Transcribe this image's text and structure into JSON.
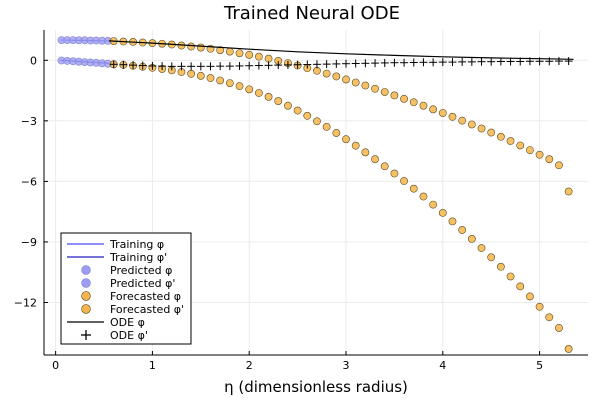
{
  "chart_data": {
    "type": "scatter",
    "title": "Trained Neural ODE",
    "xlabel": "η (dimensionless radius)",
    "ylabel": "",
    "xlim": [
      -0.12,
      5.5
    ],
    "ylim": [
      -14.6,
      1.5
    ],
    "xticks": [
      0,
      1,
      2,
      3,
      4,
      5
    ],
    "xtick_labels": [
      "0",
      "1",
      "2",
      "3",
      "4",
      "5"
    ],
    "yticks": [
      0,
      -3,
      -6,
      -9,
      -12
    ],
    "ytick_labels": [
      "0",
      "−3",
      "−6",
      "−9",
      "−12"
    ],
    "grid": true,
    "legend_position": "bottom-left",
    "colors": {
      "training_line": "#3b3bff",
      "predicted_marker": "#9c9cf2",
      "forecast_marker": "#f5b54a",
      "ode_line": "#000000"
    },
    "series": [
      {
        "name": "Training φ",
        "kind": "line",
        "color": "#4a4aff",
        "x": [
          0.05,
          0.55
        ],
        "y": [
          1.0,
          0.96
        ]
      },
      {
        "name": "Training φ'",
        "kind": "line",
        "color": "#2020c0",
        "x": [
          0.05,
          0.55
        ],
        "y": [
          0.0,
          -0.15
        ]
      },
      {
        "name": "Predicted φ",
        "kind": "marker",
        "color": "#9c9cf2",
        "x": [
          0.06,
          0.12,
          0.18,
          0.24,
          0.3,
          0.36,
          0.42,
          0.48,
          0.54
        ],
        "y": [
          1.0,
          1.0,
          1.0,
          0.99,
          0.99,
          0.98,
          0.98,
          0.97,
          0.96
        ]
      },
      {
        "name": "Predicted φ'",
        "kind": "marker",
        "color": "#9c9cf2",
        "x": [
          0.06,
          0.12,
          0.18,
          0.24,
          0.3,
          0.36,
          0.42,
          0.48,
          0.54
        ],
        "y": [
          -0.01,
          -0.03,
          -0.05,
          -0.07,
          -0.09,
          -0.11,
          -0.13,
          -0.15,
          -0.17
        ]
      },
      {
        "name": "Forecasted φ",
        "kind": "marker",
        "color": "#f5b54a",
        "x": [
          0.6,
          0.7,
          0.8,
          0.9,
          1.0,
          1.1,
          1.2,
          1.3,
          1.4,
          1.5,
          1.6,
          1.7,
          1.8,
          1.9,
          2.0,
          2.1,
          2.2,
          2.3,
          2.4,
          2.5,
          2.6,
          2.7,
          2.8,
          2.9,
          3.0,
          3.1,
          3.2,
          3.3,
          3.4,
          3.5,
          3.6,
          3.7,
          3.8,
          3.9,
          4.0,
          4.1,
          4.2,
          4.3,
          4.4,
          4.5,
          4.6,
          4.7,
          4.8,
          4.9,
          5.0,
          5.1,
          5.2,
          5.3
        ],
        "y": [
          0.95,
          0.93,
          0.91,
          0.88,
          0.85,
          0.82,
          0.78,
          0.73,
          0.68,
          0.63,
          0.57,
          0.5,
          0.43,
          0.35,
          0.27,
          0.18,
          0.08,
          -0.03,
          -0.14,
          -0.26,
          -0.39,
          -0.52,
          -0.66,
          -0.8,
          -0.95,
          -1.1,
          -1.25,
          -1.41,
          -1.57,
          -1.74,
          -1.91,
          -2.08,
          -2.25,
          -2.43,
          -2.61,
          -2.8,
          -2.99,
          -3.18,
          -3.38,
          -3.58,
          -3.79,
          -4.0,
          -4.22,
          -4.45,
          -4.68,
          -4.9,
          -5.2,
          -6.5
        ]
      },
      {
        "name": "Forecasted φ'",
        "kind": "marker",
        "color": "#f5b54a",
        "x": [
          0.6,
          0.7,
          0.8,
          0.9,
          1.0,
          1.1,
          1.2,
          1.3,
          1.4,
          1.5,
          1.6,
          1.7,
          1.8,
          1.9,
          2.0,
          2.1,
          2.2,
          2.3,
          2.4,
          2.5,
          2.6,
          2.7,
          2.8,
          2.9,
          3.0,
          3.1,
          3.2,
          3.3,
          3.4,
          3.5,
          3.6,
          3.7,
          3.8,
          3.9,
          4.0,
          4.1,
          4.2,
          4.3,
          4.4,
          4.5,
          4.6,
          4.7,
          4.8,
          4.9,
          5.0,
          5.1,
          5.2,
          5.3
        ],
        "y": [
          -0.2,
          -0.23,
          -0.27,
          -0.32,
          -0.37,
          -0.43,
          -0.5,
          -0.58,
          -0.67,
          -0.77,
          -0.88,
          -1.0,
          -1.13,
          -1.28,
          -1.44,
          -1.62,
          -1.81,
          -2.02,
          -2.25,
          -2.49,
          -2.75,
          -3.02,
          -3.3,
          -3.6,
          -3.91,
          -4.23,
          -4.56,
          -4.9,
          -5.25,
          -5.61,
          -5.98,
          -6.36,
          -6.75,
          -7.15,
          -7.56,
          -7.98,
          -8.41,
          -8.85,
          -9.3,
          -9.76,
          -10.23,
          -10.71,
          -11.2,
          -11.7,
          -12.21,
          -12.73,
          -13.26,
          -14.3
        ]
      },
      {
        "name": "ODE φ",
        "kind": "line",
        "color": "#000000",
        "x": [
          0.55,
          1.0,
          1.5,
          2.0,
          2.5,
          3.0,
          3.5,
          4.0,
          4.5,
          5.0,
          5.35
        ],
        "y": [
          0.96,
          0.85,
          0.7,
          0.55,
          0.42,
          0.32,
          0.24,
          0.17,
          0.12,
          0.08,
          0.05
        ]
      },
      {
        "name": "ODE φ'",
        "kind": "plus",
        "color": "#000000",
        "x": [
          0.6,
          0.7,
          0.8,
          0.9,
          1.0,
          1.1,
          1.2,
          1.3,
          1.4,
          1.5,
          1.6,
          1.7,
          1.8,
          1.9,
          2.0,
          2.1,
          2.2,
          2.3,
          2.4,
          2.5,
          2.6,
          2.7,
          2.8,
          2.9,
          3.0,
          3.1,
          3.2,
          3.3,
          3.4,
          3.5,
          3.6,
          3.7,
          3.8,
          3.9,
          4.0,
          4.1,
          4.2,
          4.3,
          4.4,
          4.5,
          4.6,
          4.7,
          4.8,
          4.9,
          5.0,
          5.1,
          5.2,
          5.3
        ],
        "y": [
          -0.2,
          -0.22,
          -0.24,
          -0.26,
          -0.28,
          -0.29,
          -0.3,
          -0.3,
          -0.3,
          -0.3,
          -0.3,
          -0.29,
          -0.29,
          -0.28,
          -0.27,
          -0.26,
          -0.25,
          -0.24,
          -0.23,
          -0.22,
          -0.21,
          -0.2,
          -0.19,
          -0.18,
          -0.17,
          -0.16,
          -0.15,
          -0.14,
          -0.13,
          -0.12,
          -0.12,
          -0.11,
          -0.1,
          -0.1,
          -0.09,
          -0.09,
          -0.08,
          -0.08,
          -0.07,
          -0.07,
          -0.06,
          -0.06,
          -0.06,
          -0.05,
          -0.05,
          -0.05,
          -0.04,
          -0.04
        ]
      }
    ]
  }
}
